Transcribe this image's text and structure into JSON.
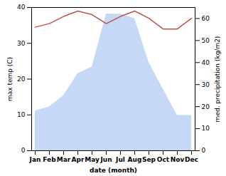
{
  "chart_data": {
    "type": "line",
    "categories": [
      "Jan",
      "Feb",
      "Mar",
      "Apr",
      "May",
      "Jun",
      "Jul",
      "Aug",
      "Sep",
      "Oct",
      "Nov",
      "Dec"
    ],
    "xlabel": "date (month)",
    "ylabel": "max temp (C)",
    "y2label": "med. precipitation (kg/m2)",
    "series": [
      {
        "name": "med. precipitation (kg/m2)",
        "type": "area",
        "axis": "y2",
        "color": "#c5d8f5",
        "values": [
          18,
          20,
          25,
          35,
          38,
          62,
          62,
          60,
          40,
          28,
          16,
          16
        ]
      },
      {
        "name": "max temp (C)",
        "type": "line",
        "color": "#c0504d",
        "values": [
          34.5,
          35.5,
          37.5,
          39.0,
          38.0,
          35.5,
          37.5,
          39.0,
          37.0,
          34.0,
          34.0,
          37.0
        ]
      }
    ],
    "ylim": [
      0,
      40
    ],
    "yticks": [
      0,
      10,
      20,
      30,
      40
    ],
    "y2lim": [
      0,
      65
    ],
    "y2ticks": [
      0,
      10,
      20,
      30,
      40,
      50,
      60
    ]
  }
}
